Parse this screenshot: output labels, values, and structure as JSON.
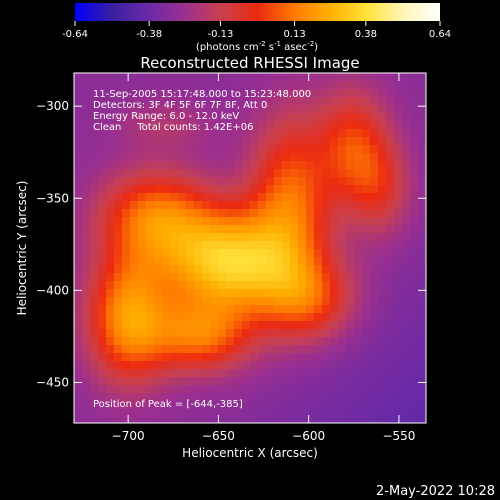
{
  "chart_data": {
    "type": "heatmap",
    "title": "Reconstructed RHESSI Image",
    "xlabel": "Heliocentric X (arcsec)",
    "ylabel": "Heliocentric Y (arcsec)",
    "xlim": [
      -730,
      -535
    ],
    "ylim": [
      -472,
      -282
    ],
    "x_ticks": [
      -700,
      -650,
      -600,
      -550
    ],
    "y_ticks": [
      -300,
      -350,
      -400,
      -450
    ],
    "colorbar": {
      "range": [
        -0.64,
        0.64
      ],
      "ticks": [
        -0.64,
        -0.38,
        -0.13,
        0.13,
        0.38,
        0.64
      ],
      "tick_labels": [
        "-0.64",
        "-0.38",
        "-0.13",
        "0.13",
        "0.38",
        "0.64"
      ],
      "units_prefix": "(photons cm",
      "units_exp1": "-2",
      "units_mid": " s",
      "units_exp2": "-1",
      "units_mid2": " asec",
      "units_exp3": "-2",
      "units_suffix": ")"
    },
    "colormap": [
      "#0000ff",
      "#3a1fa0",
      "#6a2aa6",
      "#9b2f8f",
      "#c8404f",
      "#ec2a10",
      "#ff7a00",
      "#ffb000",
      "#ffe23a",
      "#fff6b8",
      "#ffffff"
    ],
    "sources": [
      {
        "x": -644,
        "y": -385,
        "sx": 26,
        "sy": 20,
        "amp": 0.62
      },
      {
        "x": -685,
        "y": -360,
        "sx": 22,
        "sy": 18,
        "amp": 0.4
      },
      {
        "x": -700,
        "y": -415,
        "sx": 16,
        "sy": 24,
        "amp": 0.48
      },
      {
        "x": -660,
        "y": -425,
        "sx": 20,
        "sy": 14,
        "amp": 0.38
      },
      {
        "x": -610,
        "y": -350,
        "sx": 16,
        "sy": 32,
        "amp": 0.38
      },
      {
        "x": -575,
        "y": -322,
        "sx": 14,
        "sy": 22,
        "amp": 0.32
      },
      {
        "x": -560,
        "y": -345,
        "sx": 12,
        "sy": 18,
        "amp": 0.2
      },
      {
        "x": -600,
        "y": -405,
        "sx": 18,
        "sy": 16,
        "amp": 0.3
      },
      {
        "x": -680,
        "y": -310,
        "sx": 20,
        "sy": 10,
        "amp": 0.1
      }
    ],
    "annotations": [
      "11-Sep-2005 15:17:48.000 to 15:23:48.000",
      "Detectors: 3F 4F 5F 6F 7F 8F, Att 0",
      "Energy Range: 6.0 - 12.0 keV",
      "Clean     Total counts: 1.42E+06"
    ],
    "peak_label": "Position of Peak = [-644,-385]",
    "peak": {
      "x": -644,
      "y": -385
    }
  },
  "footer": {
    "date": "2-May-2022 10:28"
  }
}
